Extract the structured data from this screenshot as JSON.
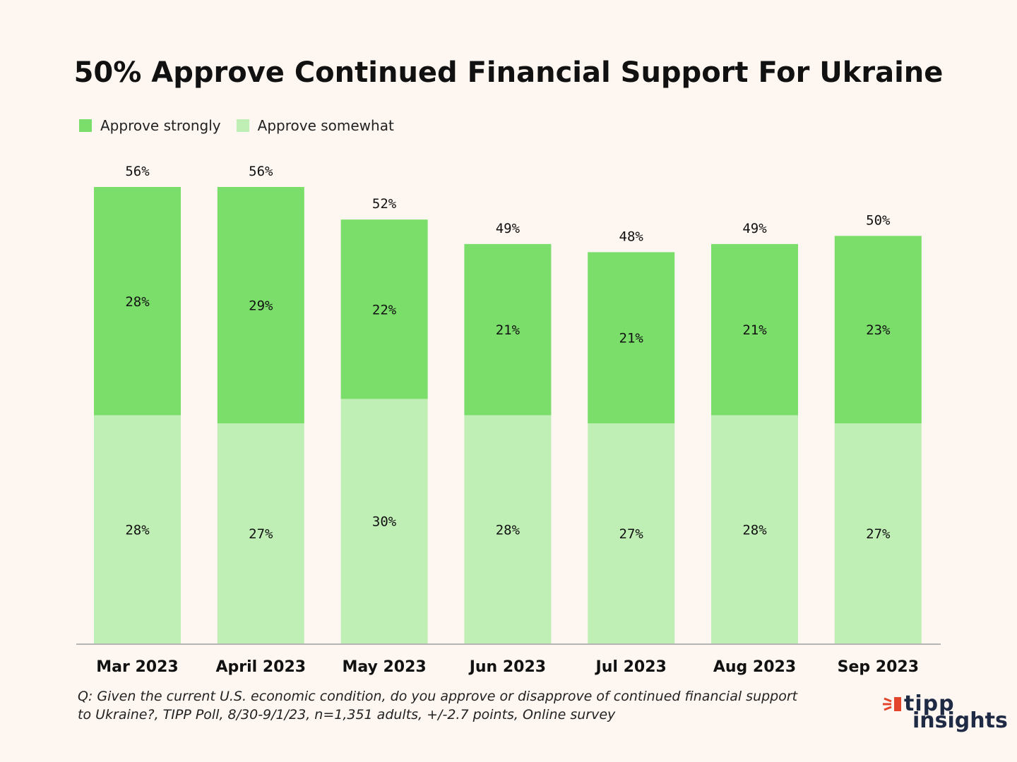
{
  "chart_data": {
    "type": "bar",
    "stacked": true,
    "title": "50% Approve Continued Financial Support For Ukraine",
    "categories": [
      "Mar 2023",
      "April 2023",
      "May 2023",
      "Jun 2023",
      "Jul 2023",
      "Aug 2023",
      "Sep 2023"
    ],
    "series": [
      {
        "name": "Approve somewhat",
        "color": "#c0efb6",
        "values": [
          28,
          27,
          30,
          28,
          27,
          28,
          27
        ]
      },
      {
        "name": "Approve strongly",
        "color": "#7bde6a",
        "values": [
          28,
          29,
          22,
          21,
          21,
          21,
          23
        ]
      }
    ],
    "totals": [
      56,
      56,
      52,
      49,
      48,
      49,
      50
    ],
    "value_suffix": "%",
    "ylim": [
      0,
      56
    ],
    "grid": false,
    "legend_position": "top-left",
    "xlabel": "",
    "ylabel": ""
  },
  "legend": {
    "items": [
      {
        "label": "Approve strongly",
        "color": "#7bde6a"
      },
      {
        "label": "Approve somewhat",
        "color": "#c0efb6"
      }
    ]
  },
  "footnote": {
    "line1": "Q: Given the current U.S. economic condition, do you approve or disapprove of continued financial support",
    "line2": "to Ukraine?, TIPP Poll, 8/30-9/1/23, n=1,351 adults, +/-2.7 points, Online survey"
  },
  "logo": {
    "top": "tipp",
    "bottom": "insights",
    "color": "#1f2a44",
    "accent": "#e2452c"
  }
}
